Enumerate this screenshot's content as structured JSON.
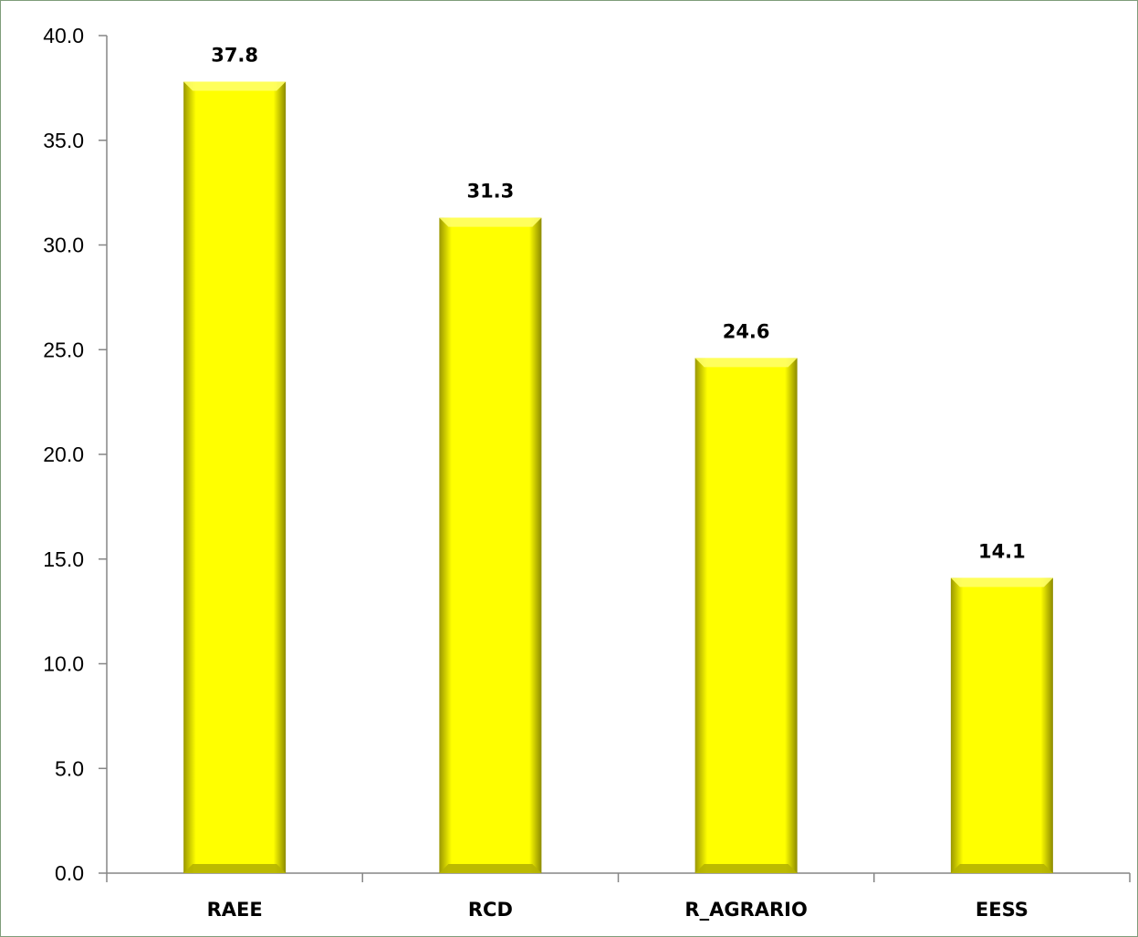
{
  "chart_data": {
    "type": "bar",
    "title": "",
    "xlabel": "",
    "ylabel": "",
    "categories": [
      "RAEE",
      "RCD",
      "R_AGRARIO",
      "EESS"
    ],
    "values": [
      37.8,
      31.3,
      24.6,
      14.1
    ],
    "data_labels": [
      "37.8",
      "31.3",
      "24.6",
      "14.1"
    ],
    "ylim": [
      0,
      40
    ],
    "yticks": [
      0,
      5,
      10,
      15,
      20,
      25,
      30,
      35,
      40
    ],
    "ytick_labels": [
      "0.0",
      "5.0",
      "10.0",
      "15.0",
      "20.0",
      "25.0",
      "30.0",
      "35.0",
      "40.0"
    ],
    "grid": false,
    "legend": "none",
    "bar_color": "#ffff00",
    "bar_shade_color": "#8c8a00",
    "axis_color": "#868686"
  }
}
